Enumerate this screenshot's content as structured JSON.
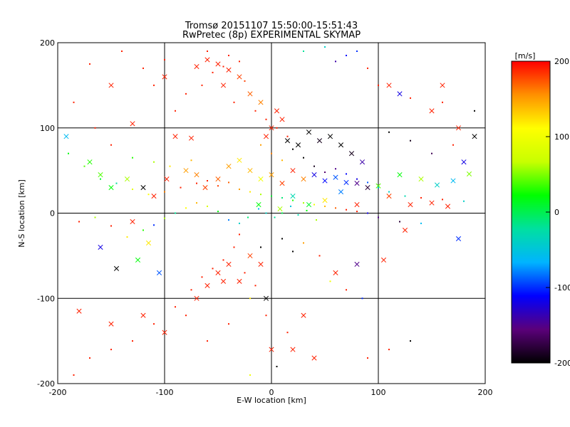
{
  "chart_data": {
    "type": "scatter",
    "title": "Tromsø 20151107 15:50:00-15:51:43",
    "subtitle": "RwPretec (8p) EXPERIMENTAL SKYMAP",
    "xlabel": "E-W location [km]",
    "ylabel": "N-S location [km]",
    "xlim": [
      -200,
      200
    ],
    "ylim": [
      -200,
      200
    ],
    "xticks": [
      "-200",
      "-100",
      "0",
      "100",
      "200"
    ],
    "yticks": [
      "-200",
      "-100",
      "0",
      "100",
      "200"
    ],
    "grid": true,
    "colorbar": {
      "label": "[m/s]",
      "range": [
        -200,
        200
      ],
      "ticks": [
        "200",
        "100",
        "0",
        "-100",
        "-200"
      ],
      "colormap": [
        "#000000",
        "#5b007a",
        "#0000ff",
        "#00b4ff",
        "#00e0a0",
        "#00ff00",
        "#c8ff00",
        "#ffff00",
        "#ff9000",
        "#ff0000"
      ]
    },
    "series": [
      {
        "marker": "x",
        "points": [
          [
            -192,
            90,
            -60
          ],
          [
            -170,
            60,
            30
          ],
          [
            -160,
            45,
            40
          ],
          [
            -150,
            30,
            20
          ],
          [
            -135,
            40,
            60
          ],
          [
            -120,
            30,
            -200
          ],
          [
            -110,
            20,
            190
          ],
          [
            -98,
            40,
            190
          ],
          [
            -80,
            50,
            150
          ],
          [
            -70,
            45,
            160
          ],
          [
            -62,
            30,
            180
          ],
          [
            -50,
            40,
            170
          ],
          [
            -40,
            55,
            150
          ],
          [
            -30,
            62,
            120
          ],
          [
            -20,
            50,
            140
          ],
          [
            -10,
            40,
            100
          ],
          [
            0,
            45,
            150
          ],
          [
            10,
            35,
            180
          ],
          [
            20,
            50,
            190
          ],
          [
            30,
            40,
            160
          ],
          [
            40,
            45,
            -120
          ],
          [
            50,
            38,
            -110
          ],
          [
            60,
            42,
            -90
          ],
          [
            70,
            36,
            -100
          ],
          [
            80,
            35,
            -150
          ],
          [
            90,
            30,
            -180
          ],
          [
            100,
            32,
            40
          ],
          [
            120,
            45,
            20
          ],
          [
            140,
            40,
            60
          ],
          [
            155,
            33,
            -40
          ],
          [
            170,
            38,
            -60
          ],
          [
            185,
            46,
            50
          ],
          [
            -60,
            180,
            190
          ],
          [
            -50,
            175,
            190
          ],
          [
            -40,
            168,
            190
          ],
          [
            -30,
            160,
            180
          ],
          [
            -70,
            172,
            190
          ],
          [
            -45,
            150,
            190
          ],
          [
            -20,
            140,
            170
          ],
          [
            -10,
            130,
            160
          ],
          [
            5,
            120,
            190
          ],
          [
            10,
            110,
            190
          ],
          [
            0,
            100,
            190
          ],
          [
            -5,
            90,
            190
          ],
          [
            15,
            85,
            -200
          ],
          [
            25,
            80,
            -200
          ],
          [
            35,
            95,
            -200
          ],
          [
            45,
            85,
            -190
          ],
          [
            55,
            90,
            -200
          ],
          [
            65,
            80,
            -200
          ],
          [
            75,
            70,
            -190
          ],
          [
            85,
            60,
            -140
          ],
          [
            -40,
            -60,
            190
          ],
          [
            -50,
            -70,
            190
          ],
          [
            -30,
            -80,
            190
          ],
          [
            -60,
            -85,
            190
          ],
          [
            -20,
            -50,
            180
          ],
          [
            -10,
            -60,
            190
          ],
          [
            -70,
            -100,
            190
          ],
          [
            -120,
            -120,
            190
          ],
          [
            -150,
            -130,
            190
          ],
          [
            -180,
            -115,
            190
          ],
          [
            -100,
            -140,
            190
          ],
          [
            0,
            -160,
            190
          ],
          [
            20,
            -160,
            190
          ],
          [
            40,
            -170,
            190
          ],
          [
            30,
            -120,
            190
          ],
          [
            -5,
            -100,
            -200
          ],
          [
            -45,
            -80,
            190
          ],
          [
            -12,
            10,
            20
          ],
          [
            8,
            5,
            60
          ],
          [
            20,
            20,
            -30
          ],
          [
            35,
            10,
            10
          ],
          [
            50,
            15,
            120
          ],
          [
            65,
            25,
            -80
          ],
          [
            80,
            10,
            190
          ],
          [
            110,
            20,
            180
          ],
          [
            130,
            10,
            190
          ],
          [
            150,
            12,
            190
          ],
          [
            165,
            8,
            190
          ],
          [
            175,
            -30,
            -100
          ],
          [
            125,
            -20,
            190
          ],
          [
            105,
            -55,
            190
          ],
          [
            80,
            -60,
            -150
          ],
          [
            60,
            -70,
            190
          ],
          [
            -150,
            150,
            190
          ],
          [
            -130,
            105,
            190
          ],
          [
            -90,
            90,
            190
          ],
          [
            -75,
            88,
            190
          ],
          [
            -100,
            160,
            190
          ],
          [
            120,
            140,
            -120
          ],
          [
            150,
            120,
            190
          ],
          [
            175,
            100,
            190
          ],
          [
            190,
            90,
            -200
          ],
          [
            160,
            150,
            190
          ],
          [
            110,
            150,
            190
          ],
          [
            180,
            60,
            -120
          ],
          [
            -115,
            -35,
            120
          ],
          [
            -125,
            -55,
            20
          ],
          [
            -145,
            -65,
            -200
          ],
          [
            -160,
            -40,
            -120
          ],
          [
            -105,
            -70,
            -90
          ],
          [
            -130,
            -10,
            190
          ]
        ]
      },
      {
        "marker": "dot",
        "points": [
          [
            -60,
            190,
            190
          ],
          [
            -40,
            185,
            190
          ],
          [
            -30,
            178,
            190
          ],
          [
            -55,
            165,
            190
          ],
          [
            -45,
            172,
            190
          ],
          [
            -25,
            155,
            180
          ],
          [
            -65,
            150,
            190
          ],
          [
            -80,
            140,
            190
          ],
          [
            -90,
            120,
            190
          ],
          [
            -35,
            130,
            190
          ],
          [
            -15,
            120,
            190
          ],
          [
            -5,
            110,
            190
          ],
          [
            5,
            100,
            190
          ],
          [
            15,
            90,
            190
          ],
          [
            -10,
            80,
            150
          ],
          [
            0,
            70,
            160
          ],
          [
            10,
            62,
            140
          ],
          [
            20,
            75,
            -200
          ],
          [
            30,
            65,
            -200
          ],
          [
            40,
            55,
            -190
          ],
          [
            50,
            48,
            -160
          ],
          [
            60,
            52,
            -150
          ],
          [
            70,
            46,
            -110
          ],
          [
            80,
            40,
            -120
          ],
          [
            90,
            36,
            -90
          ],
          [
            100,
            30,
            -60
          ],
          [
            110,
            25,
            -40
          ],
          [
            125,
            20,
            -30
          ],
          [
            140,
            18,
            190
          ],
          [
            160,
            16,
            190
          ],
          [
            180,
            14,
            -40
          ],
          [
            -190,
            70,
            20
          ],
          [
            -175,
            55,
            40
          ],
          [
            -160,
            40,
            10
          ],
          [
            -145,
            35,
            -20
          ],
          [
            -130,
            28,
            90
          ],
          [
            -115,
            22,
            110
          ],
          [
            -100,
            25,
            160
          ],
          [
            -85,
            30,
            190
          ],
          [
            -70,
            35,
            190
          ],
          [
            -60,
            38,
            190
          ],
          [
            -50,
            32,
            180
          ],
          [
            -40,
            36,
            170
          ],
          [
            -30,
            28,
            150
          ],
          [
            -20,
            25,
            120
          ],
          [
            -10,
            22,
            60
          ],
          [
            0,
            20,
            10
          ],
          [
            10,
            18,
            -10
          ],
          [
            20,
            15,
            30
          ],
          [
            30,
            12,
            60
          ],
          [
            40,
            10,
            100
          ],
          [
            50,
            8,
            140
          ],
          [
            60,
            6,
            170
          ],
          [
            70,
            4,
            190
          ],
          [
            80,
            2,
            190
          ],
          [
            90,
            0,
            -120
          ],
          [
            100,
            -5,
            -150
          ],
          [
            120,
            -10,
            -180
          ],
          [
            140,
            -12,
            -60
          ],
          [
            -100,
            180,
            190
          ],
          [
            -110,
            150,
            190
          ],
          [
            -120,
            170,
            190
          ],
          [
            -140,
            190,
            190
          ],
          [
            -170,
            175,
            190
          ],
          [
            -185,
            130,
            190
          ],
          [
            -165,
            100,
            190
          ],
          [
            -150,
            80,
            190
          ],
          [
            -130,
            65,
            30
          ],
          [
            -110,
            60,
            60
          ],
          [
            -95,
            55,
            120
          ],
          [
            -75,
            62,
            140
          ],
          [
            30,
            190,
            -20
          ],
          [
            50,
            195,
            -40
          ],
          [
            70,
            185,
            -110
          ],
          [
            80,
            190,
            -100
          ],
          [
            60,
            178,
            -140
          ],
          [
            90,
            170,
            190
          ],
          [
            100,
            150,
            190
          ],
          [
            130,
            135,
            190
          ],
          [
            160,
            130,
            190
          ],
          [
            190,
            120,
            -200
          ],
          [
            170,
            80,
            190
          ],
          [
            150,
            70,
            -170
          ],
          [
            130,
            85,
            -190
          ],
          [
            110,
            95,
            -200
          ],
          [
            -35,
            -40,
            190
          ],
          [
            -45,
            -55,
            190
          ],
          [
            -55,
            -65,
            190
          ],
          [
            -25,
            -70,
            190
          ],
          [
            -15,
            -85,
            190
          ],
          [
            -65,
            -75,
            190
          ],
          [
            -75,
            -90,
            190
          ],
          [
            -20,
            -100,
            120
          ],
          [
            -10,
            -40,
            -200
          ],
          [
            -30,
            -25,
            190
          ],
          [
            10,
            -30,
            -200
          ],
          [
            20,
            -45,
            -200
          ],
          [
            30,
            -35,
            150
          ],
          [
            45,
            -50,
            190
          ],
          [
            55,
            -80,
            100
          ],
          [
            70,
            -90,
            190
          ],
          [
            85,
            -100,
            -100
          ],
          [
            -5,
            -120,
            190
          ],
          [
            15,
            -140,
            190
          ],
          [
            -130,
            -150,
            190
          ],
          [
            -150,
            -160,
            190
          ],
          [
            -170,
            -170,
            190
          ],
          [
            -185,
            -190,
            190
          ],
          [
            -110,
            -130,
            190
          ],
          [
            -90,
            -110,
            190
          ],
          [
            -80,
            -120,
            190
          ],
          [
            -60,
            -150,
            190
          ],
          [
            -40,
            -130,
            190
          ],
          [
            -20,
            -190,
            100
          ],
          [
            5,
            -180,
            -200
          ],
          [
            130,
            -150,
            -200
          ],
          [
            110,
            -160,
            190
          ],
          [
            90,
            -170,
            190
          ],
          [
            -12,
            5,
            -60
          ],
          [
            -5,
            0,
            -40
          ],
          [
            3,
            -5,
            -20
          ],
          [
            10,
            0,
            0
          ],
          [
            18,
            8,
            -50
          ],
          [
            25,
            -2,
            -30
          ],
          [
            33,
            3,
            20
          ],
          [
            42,
            -8,
            60
          ],
          [
            -22,
            -5,
            -10
          ],
          [
            -30,
            -12,
            -40
          ],
          [
            -40,
            -8,
            -80
          ],
          [
            -50,
            2,
            20
          ],
          [
            -60,
            8,
            80
          ],
          [
            -70,
            12,
            140
          ],
          [
            -80,
            6,
            110
          ],
          [
            -90,
            0,
            -20
          ],
          [
            -100,
            -6,
            60
          ],
          [
            -110,
            -14,
            -100
          ],
          [
            -120,
            -20,
            30
          ],
          [
            -135,
            -28,
            120
          ],
          [
            -150,
            -15,
            190
          ],
          [
            -165,
            -5,
            60
          ],
          [
            -180,
            -10,
            190
          ]
        ]
      }
    ]
  }
}
